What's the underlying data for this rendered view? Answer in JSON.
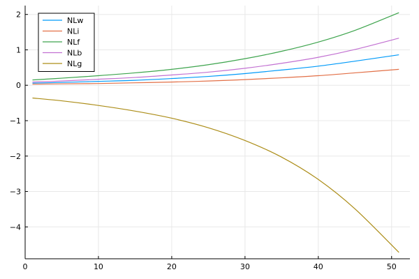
{
  "chart_data": {
    "type": "line",
    "title": "",
    "xlabel": "",
    "ylabel": "",
    "xlim": [
      0,
      52.5
    ],
    "ylim": [
      -4.9,
      2.25
    ],
    "xticks": [
      0,
      10,
      20,
      30,
      40,
      50
    ],
    "yticks": [
      2,
      1,
      0,
      -1,
      -2,
      -3,
      -4
    ],
    "xtick_labels": [
      "0",
      "10",
      "20",
      "30",
      "40",
      "50"
    ],
    "ytick_labels": [
      "2",
      "1",
      "0",
      "−1",
      "−2",
      "−3",
      "−4"
    ],
    "grid": true,
    "legend": "top-left",
    "series": [
      {
        "name": "NLw",
        "color": "#009af9",
        "x": [
          1,
          5,
          10,
          15,
          20,
          25,
          30,
          35,
          40,
          45,
          51
        ],
        "y": [
          0.06,
          0.08,
          0.11,
          0.14,
          0.19,
          0.25,
          0.33,
          0.43,
          0.54,
          0.68,
          0.86
        ]
      },
      {
        "name": "NLi",
        "color": "#e26f46",
        "x": [
          1,
          5,
          10,
          15,
          20,
          25,
          30,
          35,
          40,
          45,
          51
        ],
        "y": [
          0.03,
          0.04,
          0.05,
          0.07,
          0.09,
          0.12,
          0.16,
          0.21,
          0.27,
          0.35,
          0.45
        ]
      },
      {
        "name": "NLf",
        "color": "#3da44d",
        "x": [
          1,
          5,
          10,
          15,
          20,
          25,
          30,
          35,
          40,
          45,
          51
        ],
        "y": [
          0.15,
          0.2,
          0.27,
          0.35,
          0.45,
          0.58,
          0.75,
          0.96,
          1.22,
          1.55,
          2.05
        ]
      },
      {
        "name": "NLb",
        "color": "#c271d2",
        "x": [
          1,
          5,
          10,
          15,
          20,
          25,
          30,
          35,
          40,
          45,
          51
        ],
        "y": [
          0.09,
          0.12,
          0.17,
          0.22,
          0.29,
          0.37,
          0.48,
          0.62,
          0.79,
          1.01,
          1.33
        ]
      },
      {
        "name": "NLg",
        "color": "#ac8d18",
        "x": [
          1,
          5,
          10,
          15,
          20,
          25,
          30,
          35,
          40,
          45,
          51
        ],
        "y": [
          -0.36,
          -0.44,
          -0.57,
          -0.73,
          -0.93,
          -1.2,
          -1.56,
          -2.03,
          -2.66,
          -3.49,
          -4.72
        ]
      }
    ]
  }
}
